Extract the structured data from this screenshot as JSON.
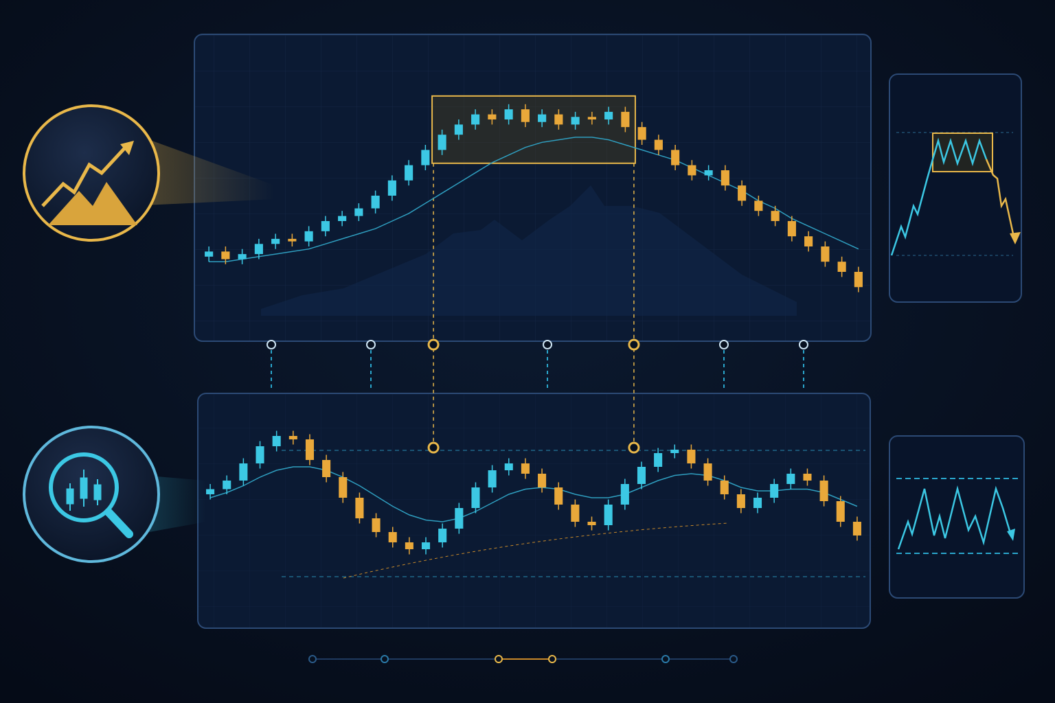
{
  "chart_data": [
    {
      "type": "candlestick",
      "open": [
        26,
        28,
        25,
        27,
        31,
        33,
        32,
        36,
        40,
        42,
        45,
        50,
        56,
        62,
        68,
        74,
        78,
        82,
        80,
        84,
        79,
        82,
        78,
        81,
        80,
        83,
        77,
        72,
        68,
        62,
        58,
        60,
        54,
        48,
        44,
        40,
        34,
        30,
        24,
        20
      ],
      "high": [
        30,
        30,
        29,
        33,
        35,
        35,
        38,
        42,
        44,
        47,
        52,
        58,
        64,
        70,
        76,
        80,
        84,
        84,
        86,
        86,
        84,
        84,
        83,
        83,
        85,
        85,
        79,
        74,
        70,
        64,
        62,
        62,
        56,
        50,
        46,
        42,
        36,
        32,
        26,
        22
      ],
      "low": [
        24,
        23,
        23,
        25,
        29,
        30,
        30,
        34,
        38,
        40,
        43,
        48,
        54,
        60,
        66,
        72,
        76,
        78,
        78,
        77,
        77,
        76,
        76,
        78,
        78,
        75,
        70,
        66,
        60,
        56,
        56,
        52,
        46,
        42,
        38,
        32,
        28,
        22,
        18,
        12
      ],
      "close": [
        28,
        25,
        27,
        31,
        33,
        32,
        36,
        40,
        42,
        45,
        50,
        56,
        62,
        68,
        74,
        78,
        82,
        80,
        84,
        79,
        82,
        78,
        81,
        80,
        83,
        77,
        72,
        68,
        62,
        58,
        60,
        54,
        48,
        44,
        40,
        34,
        30,
        24,
        20,
        14
      ],
      "ma": [
        24,
        24,
        25,
        26,
        27,
        28,
        29,
        31,
        33,
        35,
        37,
        40,
        43,
        47,
        51,
        55,
        59,
        63,
        66,
        69,
        71,
        72,
        73,
        73,
        72,
        70,
        68,
        66,
        64,
        61,
        58,
        55,
        52,
        48,
        45,
        41,
        38,
        35,
        32,
        29
      ],
      "highlight_range": [
        14,
        25
      ],
      "ylim": [
        0,
        100
      ],
      "color_up": "#3cc8e4",
      "color_down": "#e9a83a",
      "ma_color": "#2f9fc0"
    },
    {
      "type": "candlestick",
      "open": [
        52,
        55,
        60,
        70,
        80,
        86,
        84,
        72,
        62,
        50,
        38,
        30,
        24,
        20,
        24,
        32,
        44,
        56,
        66,
        70,
        64,
        56,
        46,
        36,
        34,
        46,
        58,
        68,
        76,
        78,
        70,
        60,
        52,
        44,
        50,
        58,
        64,
        60,
        48,
        36
      ],
      "high": [
        58,
        63,
        73,
        83,
        89,
        89,
        87,
        75,
        65,
        53,
        41,
        33,
        27,
        27,
        35,
        47,
        59,
        69,
        73,
        73,
        67,
        59,
        49,
        39,
        49,
        61,
        71,
        79,
        81,
        81,
        73,
        63,
        55,
        53,
        61,
        67,
        67,
        63,
        51,
        39
      ],
      "low": [
        49,
        52,
        57,
        67,
        77,
        81,
        69,
        59,
        47,
        35,
        27,
        21,
        17,
        17,
        21,
        29,
        41,
        53,
        63,
        61,
        53,
        43,
        33,
        31,
        31,
        43,
        55,
        65,
        73,
        67,
        57,
        49,
        41,
        41,
        47,
        55,
        57,
        45,
        33,
        25
      ],
      "close": [
        55,
        60,
        70,
        80,
        86,
        84,
        72,
        62,
        50,
        38,
        30,
        24,
        20,
        24,
        32,
        44,
        56,
        66,
        70,
        64,
        56,
        46,
        36,
        34,
        46,
        58,
        68,
        76,
        78,
        70,
        60,
        52,
        44,
        50,
        58,
        64,
        60,
        48,
        36,
        28
      ],
      "ma": [
        50,
        53,
        57,
        62,
        66,
        68,
        68,
        66,
        62,
        57,
        51,
        45,
        40,
        37,
        36,
        38,
        42,
        47,
        52,
        55,
        56,
        55,
        52,
        50,
        50,
        52,
        56,
        60,
        63,
        64,
        63,
        60,
        56,
        54,
        54,
        55,
        55,
        53,
        49,
        45
      ],
      "ylim": [
        0,
        100
      ],
      "color_up": "#3cc8e4",
      "color_down": "#e9a83a",
      "ma_color": "#2f9fc0"
    }
  ]
}
